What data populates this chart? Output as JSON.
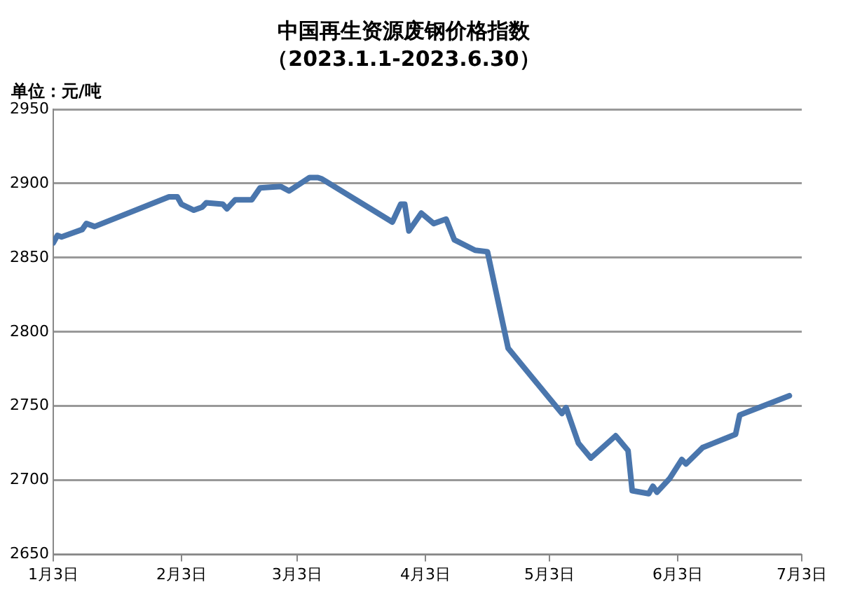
{
  "chart_data": {
    "type": "line",
    "title": "中国再生资源废钢价格指数",
    "subtitle": "（2023.1.1-2023.6.30）",
    "ylabel": "单位：元/吨",
    "x": [
      "2023-01-03",
      "2023-01-04",
      "2023-01-05",
      "2023-01-10",
      "2023-01-11",
      "2023-01-13",
      "2023-01-31",
      "2023-02-02",
      "2023-02-03",
      "2023-02-06",
      "2023-02-08",
      "2023-02-09",
      "2023-02-13",
      "2023-02-14",
      "2023-02-16",
      "2023-02-20",
      "2023-02-22",
      "2023-02-27",
      "2023-03-01",
      "2023-03-06",
      "2023-03-08",
      "2023-03-09",
      "2023-03-26",
      "2023-03-28",
      "2023-03-29",
      "2023-03-30",
      "2023-04-02",
      "2023-04-05",
      "2023-04-08",
      "2023-04-10",
      "2023-04-15",
      "2023-04-18",
      "2023-04-23",
      "2023-05-06",
      "2023-05-07",
      "2023-05-10",
      "2023-05-13",
      "2023-05-19",
      "2023-05-22",
      "2023-05-23",
      "2023-05-27",
      "2023-05-28",
      "2023-05-29",
      "2023-06-01",
      "2023-06-04",
      "2023-06-05",
      "2023-06-09",
      "2023-06-17",
      "2023-06-18",
      "2023-06-30"
    ],
    "series": [
      {
        "color": "#4a76ad",
        "values": [
          2860,
          2865,
          2864,
          2869,
          2873,
          2871,
          2891,
          2891,
          2886,
          2882,
          2884,
          2887,
          2886,
          2883,
          2889,
          2889,
          2897,
          2898,
          2895,
          2904,
          2904,
          2903,
          2874,
          2886,
          2886,
          2868,
          2880,
          2873,
          2876,
          2862,
          2855,
          2854,
          2789,
          2745,
          2749,
          2725,
          2715,
          2730,
          2720,
          2693,
          2691,
          2696,
          2692,
          2701,
          2714,
          2711,
          2722,
          2731,
          2744,
          2757
        ]
      }
    ],
    "xlim": [
      "2023-01-03",
      "2023-07-03"
    ],
    "xticks": [
      {
        "value": "2023-01-03",
        "label": "1月3日"
      },
      {
        "value": "2023-02-03",
        "label": "2月3日"
      },
      {
        "value": "2023-03-03",
        "label": "3月3日"
      },
      {
        "value": "2023-04-03",
        "label": "4月3日"
      },
      {
        "value": "2023-05-03",
        "label": "5月3日"
      },
      {
        "value": "2023-06-03",
        "label": "6月3日"
      },
      {
        "value": "2023-07-03",
        "label": "7月3日"
      }
    ],
    "ylim": [
      2650,
      2950
    ],
    "yticks": [
      2650,
      2700,
      2750,
      2800,
      2850,
      2900,
      2950
    ],
    "grid": "y",
    "legend": false,
    "marker": "none",
    "line_style": "solid"
  }
}
